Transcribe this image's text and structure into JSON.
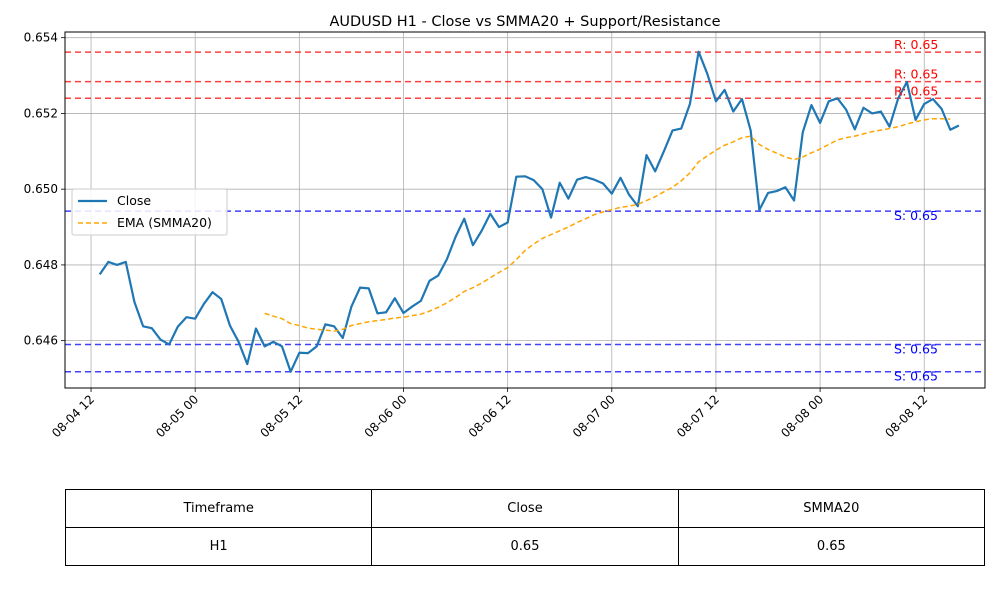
{
  "chart_data": {
    "type": "line",
    "title": "AUDUSD H1 - Close vs SMMA20 + Support/Resistance",
    "xlabel": "",
    "ylabel": "",
    "x_range": [
      "2025-08-04 09:00",
      "2025-08-08 19:00"
    ],
    "ylim": [
      0.64475,
      0.65415
    ],
    "x_ticks": [
      "08-04 12",
      "08-05 00",
      "08-05 12",
      "08-06 00",
      "08-06 12",
      "08-07 00",
      "08-07 12",
      "08-08 00",
      "08-08 12"
    ],
    "x_tick_times": [
      "2025-08-04 12:00",
      "2025-08-05 00:00",
      "2025-08-05 12:00",
      "2025-08-06 00:00",
      "2025-08-06 12:00",
      "2025-08-07 00:00",
      "2025-08-07 12:00",
      "2025-08-08 00:00",
      "2025-08-08 12:00"
    ],
    "y_ticks": [
      "0.646",
      "0.648",
      "0.650",
      "0.652",
      "0.654"
    ],
    "y_tick_values": [
      0.646,
      0.648,
      0.65,
      0.652,
      0.654
    ],
    "grid": true,
    "legend_position": "center-left",
    "series": [
      {
        "name": "Close",
        "color": "#1f77b4",
        "style": "solid",
        "start": "2025-08-04 13:00",
        "interval_hours": 1,
        "values": [
          0.64775,
          0.64808,
          0.648,
          0.64808,
          0.64702,
          0.64638,
          0.64633,
          0.64603,
          0.6459,
          0.64637,
          0.64662,
          0.64658,
          0.64697,
          0.64728,
          0.6471,
          0.6464,
          0.64597,
          0.64538,
          0.64632,
          0.64585,
          0.64597,
          0.64585,
          0.64518,
          0.64568,
          0.64567,
          0.64585,
          0.64643,
          0.64638,
          0.64607,
          0.6469,
          0.6474,
          0.64738,
          0.64672,
          0.64675,
          0.64712,
          0.64673,
          0.6469,
          0.64705,
          0.64758,
          0.64772,
          0.64815,
          0.64874,
          0.64922,
          0.64852,
          0.6489,
          0.64935,
          0.649,
          0.64912,
          0.65033,
          0.65034,
          0.65024,
          0.65,
          0.64925,
          0.65017,
          0.64975,
          0.65025,
          0.65032,
          0.65025,
          0.65015,
          0.64988,
          0.6503,
          0.64985,
          0.64955,
          0.6509,
          0.65047,
          0.651,
          0.65155,
          0.6516,
          0.65225,
          0.65363,
          0.65305,
          0.65232,
          0.65262,
          0.65205,
          0.65238,
          0.65155,
          0.64945,
          0.6499,
          0.64995,
          0.65005,
          0.6497,
          0.6515,
          0.65222,
          0.65175,
          0.65232,
          0.6524,
          0.6521,
          0.65158,
          0.65215,
          0.652,
          0.65205,
          0.65165,
          0.6524,
          0.65283,
          0.65183,
          0.65225,
          0.65238,
          0.65212,
          0.65157,
          0.65168
        ]
      },
      {
        "name": "EMA (SMMA20)",
        "color": "#ffa500",
        "style": "dashed",
        "start": "2025-08-05 08:00",
        "interval_hours": 1,
        "values": [
          0.64672,
          0.64665,
          0.64658,
          0.64645,
          0.6464,
          0.64633,
          0.6463,
          0.64628,
          0.64625,
          0.6463,
          0.6464,
          0.64645,
          0.6465,
          0.64653,
          0.64656,
          0.6466,
          0.64662,
          0.64666,
          0.6467,
          0.64678,
          0.64688,
          0.647,
          0.64714,
          0.6473,
          0.6474,
          0.64752,
          0.64766,
          0.6478,
          0.64793,
          0.64814,
          0.64838,
          0.64855,
          0.6487,
          0.6488,
          0.6489,
          0.649,
          0.64912,
          0.64922,
          0.64933,
          0.6494,
          0.64946,
          0.64952,
          0.64955,
          0.6496,
          0.6497,
          0.6498,
          0.64993,
          0.65005,
          0.65022,
          0.65043,
          0.65072,
          0.65088,
          0.65103,
          0.65116,
          0.65125,
          0.65136,
          0.6514,
          0.65118,
          0.65105,
          0.65095,
          0.65085,
          0.65078,
          0.65085,
          0.65096,
          0.65106,
          0.65118,
          0.6513,
          0.65136,
          0.6514,
          0.65146,
          0.65152,
          0.65156,
          0.6516,
          0.65165,
          0.65172,
          0.65178,
          0.65183,
          0.65186,
          0.65186,
          0.65185
        ]
      }
    ],
    "levels": [
      {
        "kind": "resistance",
        "value": 0.65362,
        "label": "R: 0.65",
        "color": "#ff0000"
      },
      {
        "kind": "resistance",
        "value": 0.65284,
        "label": "R: 0.65",
        "color": "#ff0000"
      },
      {
        "kind": "resistance",
        "value": 0.6524,
        "label": "R: 0.65",
        "color": "#ff0000"
      },
      {
        "kind": "support",
        "value": 0.64942,
        "label": "S: 0.65",
        "color": "#0000ff"
      },
      {
        "kind": "support",
        "value": 0.6459,
        "label": "S: 0.65",
        "color": "#0000ff"
      },
      {
        "kind": "support",
        "value": 0.64518,
        "label": "S: 0.65",
        "color": "#0000ff"
      }
    ]
  },
  "table": {
    "headers": [
      "Timeframe",
      "Close",
      "SMMA20"
    ],
    "rows": [
      [
        "H1",
        "0.65",
        "0.65"
      ]
    ]
  }
}
